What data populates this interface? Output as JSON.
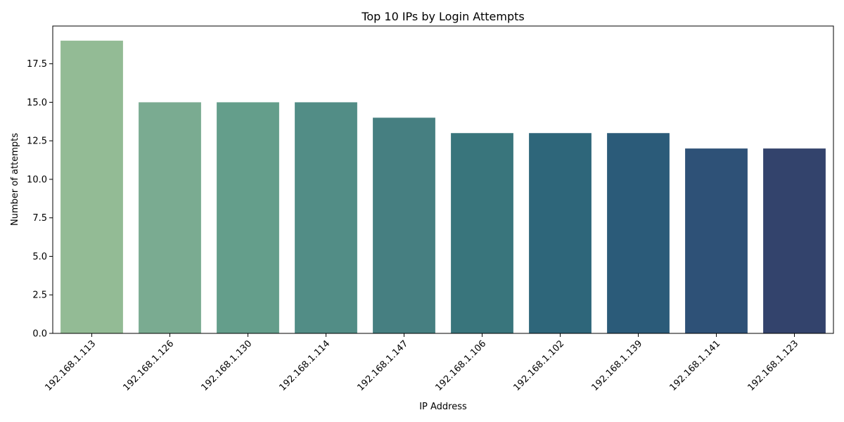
{
  "chart_data": {
    "type": "bar",
    "title": "Top 10 IPs by Login Attempts",
    "xlabel": "IP Address",
    "ylabel": "Number of attempts",
    "categories": [
      "192.168.1.113",
      "192.168.1.126",
      "192.168.1.130",
      "192.168.1.114",
      "192.168.1.147",
      "192.168.1.106",
      "192.168.1.102",
      "192.168.1.139",
      "192.168.1.141",
      "192.168.1.123"
    ],
    "values": [
      19,
      15,
      15,
      15,
      14,
      13,
      13,
      13,
      12,
      12
    ],
    "colors": [
      "#93bb95",
      "#7aab91",
      "#649e8b",
      "#528d86",
      "#467f81",
      "#39757c",
      "#2e667a",
      "#2b5b79",
      "#2e5177",
      "#33436c"
    ],
    "ylim": [
      0,
      19.95
    ],
    "yticks": [
      0.0,
      2.5,
      5.0,
      7.5,
      10.0,
      12.5,
      15.0,
      17.5
    ],
    "ytick_labels": [
      "0.0",
      "2.5",
      "5.0",
      "7.5",
      "10.0",
      "12.5",
      "15.0",
      "17.5"
    ],
    "grid": false,
    "legend": "none"
  }
}
